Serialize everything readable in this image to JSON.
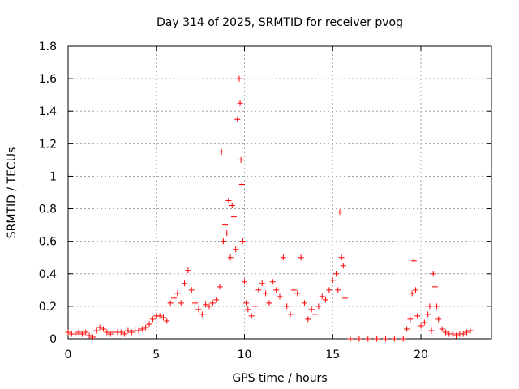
{
  "chart_data": {
    "type": "scatter",
    "title": "Day 314 of 2025, SRMTID for receiver pvog",
    "xlabel": "GPS time / hours",
    "ylabel": "SRMTID / TECUs",
    "xlim": [
      0,
      24
    ],
    "ylim": [
      0,
      1.8
    ],
    "xticks": [
      0,
      5,
      10,
      15,
      20
    ],
    "xtick_labels": [
      "0",
      "5",
      "10",
      "15",
      "20"
    ],
    "yticks": [
      0,
      0.2,
      0.4,
      0.6,
      0.8,
      1.0,
      1.2,
      1.4,
      1.6,
      1.8
    ],
    "ytick_labels": [
      "0",
      "0.2",
      "0.4",
      "0.6",
      "0.8",
      "1",
      "1.2",
      "1.4",
      "1.6",
      "1.8"
    ],
    "grid": true,
    "marker": "+",
    "color": "#ff0000",
    "series": [
      {
        "name": "SRMTID",
        "x": [
          0.0,
          0.2,
          0.4,
          0.6,
          0.8,
          1.0,
          1.2,
          1.4,
          1.6,
          1.8,
          2.0,
          2.2,
          2.4,
          2.6,
          2.8,
          3.0,
          3.2,
          3.4,
          3.6,
          3.8,
          4.0,
          4.2,
          4.4,
          4.6,
          4.8,
          5.0,
          5.2,
          5.4,
          5.6,
          5.8,
          6.0,
          6.2,
          6.4,
          6.6,
          6.8,
          7.0,
          7.2,
          7.4,
          7.6,
          7.8,
          8.0,
          8.2,
          8.4,
          8.6,
          8.7,
          8.8,
          8.9,
          9.0,
          9.1,
          9.2,
          9.3,
          9.4,
          9.5,
          9.6,
          9.7,
          9.75,
          9.8,
          9.85,
          9.9,
          10.0,
          10.1,
          10.2,
          10.4,
          10.6,
          10.8,
          11.0,
          11.2,
          11.4,
          11.6,
          11.8,
          12.0,
          12.2,
          12.4,
          12.6,
          12.8,
          13.0,
          13.2,
          13.4,
          13.6,
          13.8,
          14.0,
          14.2,
          14.4,
          14.6,
          14.8,
          15.0,
          15.2,
          15.3,
          15.4,
          15.5,
          15.6,
          15.7,
          16.0,
          16.5,
          17.0,
          17.5,
          18.0,
          18.5,
          19.0,
          19.2,
          19.4,
          19.5,
          19.6,
          19.7,
          19.8,
          20.0,
          20.2,
          20.4,
          20.5,
          20.6,
          20.7,
          20.8,
          20.9,
          21.0,
          21.2,
          21.4,
          21.6,
          21.8,
          22.0,
          22.2,
          22.4,
          22.6,
          22.8
        ],
        "y": [
          0.04,
          0.03,
          0.03,
          0.04,
          0.03,
          0.04,
          0.02,
          0.01,
          0.05,
          0.07,
          0.06,
          0.04,
          0.03,
          0.04,
          0.04,
          0.04,
          0.03,
          0.05,
          0.04,
          0.05,
          0.05,
          0.06,
          0.07,
          0.09,
          0.12,
          0.14,
          0.14,
          0.13,
          0.11,
          0.22,
          0.25,
          0.28,
          0.22,
          0.34,
          0.42,
          0.3,
          0.22,
          0.18,
          0.15,
          0.21,
          0.2,
          0.22,
          0.24,
          0.32,
          1.15,
          0.6,
          0.7,
          0.65,
          0.85,
          0.5,
          0.82,
          0.75,
          0.55,
          1.35,
          1.6,
          1.45,
          1.1,
          0.95,
          0.6,
          0.35,
          0.22,
          0.18,
          0.14,
          0.2,
          0.3,
          0.34,
          0.28,
          0.22,
          0.35,
          0.3,
          0.26,
          0.5,
          0.2,
          0.15,
          0.3,
          0.28,
          0.5,
          0.22,
          0.12,
          0.18,
          0.15,
          0.2,
          0.26,
          0.24,
          0.3,
          0.36,
          0.4,
          0.3,
          0.78,
          0.5,
          0.45,
          0.25,
          0.0,
          0.0,
          0.0,
          0.0,
          0.0,
          0.0,
          0.0,
          0.06,
          0.12,
          0.28,
          0.48,
          0.3,
          0.14,
          0.08,
          0.1,
          0.15,
          0.2,
          0.05,
          0.4,
          0.32,
          0.2,
          0.12,
          0.06,
          0.04,
          0.03,
          0.03,
          0.02,
          0.03,
          0.03,
          0.04,
          0.05
        ]
      }
    ]
  }
}
